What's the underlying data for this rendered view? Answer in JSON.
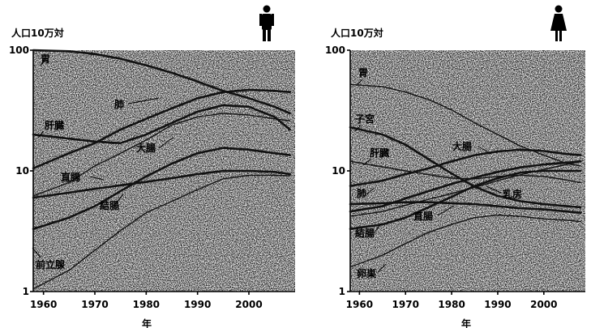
{
  "chart_data": [
    {
      "type": "line",
      "panel": "male",
      "icon": "male-person-icon",
      "y_unit_label": "人口10万対",
      "xlabel": "年",
      "yscale": "log",
      "ylim": [
        1,
        100
      ],
      "xlim": [
        1958,
        2009
      ],
      "x_ticks": [
        "1960",
        "1970",
        "1980",
        "1990",
        "2000"
      ],
      "y_ticks": [
        "1",
        "10",
        "100"
      ],
      "grid": true,
      "series": [
        {
          "name": "胃",
          "weight": "bold",
          "x": [
            1958,
            1965,
            1970,
            1975,
            1980,
            1985,
            1990,
            1995,
            2000,
            2005,
            2008
          ],
          "values": [
            100,
            98,
            93,
            85,
            75,
            65,
            55,
            46,
            40,
            34,
            30
          ]
        },
        {
          "name": "肺",
          "weight": "bold",
          "x": [
            1958,
            1965,
            1970,
            1975,
            1980,
            1985,
            1990,
            1995,
            2000,
            2005,
            2008
          ],
          "values": [
            10.5,
            14,
            17,
            22,
            27,
            33,
            40,
            45,
            47,
            46,
            45
          ]
        },
        {
          "name": "肝臓",
          "weight": "bold",
          "x": [
            1958,
            1965,
            1970,
            1975,
            1980,
            1985,
            1990,
            1995,
            2000,
            2005,
            2008
          ],
          "values": [
            20,
            18.5,
            17.5,
            17,
            20,
            25,
            31,
            35,
            34,
            28,
            22
          ]
        },
        {
          "name": "大腸",
          "weight": "normal",
          "x": [
            1958,
            1965,
            1970,
            1975,
            1980,
            1985,
            1990,
            1995,
            2000,
            2005,
            2008
          ],
          "values": [
            6.2,
            8,
            11,
            14,
            18,
            24,
            28,
            30,
            29,
            27,
            26
          ]
        },
        {
          "name": "直腸",
          "weight": "bold",
          "x": [
            1958,
            1965,
            1970,
            1975,
            1980,
            1985,
            1990,
            1995,
            2000,
            2005,
            2008
          ],
          "values": [
            6,
            6.6,
            7.1,
            7.6,
            8.1,
            8.7,
            9.4,
            10,
            10,
            9.8,
            9.4
          ]
        },
        {
          "name": "結腸",
          "weight": "bold",
          "x": [
            1958,
            1965,
            1970,
            1975,
            1980,
            1985,
            1990,
            1995,
            2000,
            2005,
            2008
          ],
          "values": [
            3.3,
            4.1,
            5.1,
            6.8,
            9,
            11.5,
            14,
            15.5,
            15,
            14,
            13.5
          ]
        },
        {
          "name": "前立腺",
          "weight": "normal",
          "x": [
            1958,
            1965,
            1970,
            1975,
            1980,
            1985,
            1990,
            1995,
            2000,
            2005,
            2008
          ],
          "values": [
            1.05,
            1.5,
            2.2,
            3.2,
            4.5,
            5.6,
            7,
            8.6,
            9.2,
            9.2,
            9.1
          ]
        }
      ]
    },
    {
      "type": "line",
      "panel": "female",
      "icon": "female-person-icon",
      "y_unit_label": "人口10万対",
      "xlabel": "年",
      "yscale": "log",
      "ylim": [
        1,
        100
      ],
      "xlim": [
        1958,
        2009
      ],
      "x_ticks": [
        "1960",
        "1970",
        "1980",
        "1990",
        "2000"
      ],
      "y_ticks": [
        "1",
        "10",
        "100"
      ],
      "grid": true,
      "series": [
        {
          "name": "胃",
          "weight": "normal",
          "x": [
            1958,
            1965,
            1970,
            1975,
            1980,
            1985,
            1990,
            1995,
            2000,
            2005,
            2008
          ],
          "values": [
            52,
            50,
            45,
            39,
            32,
            25,
            20,
            16,
            13.5,
            11.5,
            11
          ]
        },
        {
          "name": "子宮",
          "weight": "bold",
          "x": [
            1958,
            1965,
            1970,
            1975,
            1980,
            1985,
            1990,
            1995,
            2000,
            2005,
            2008
          ],
          "values": [
            23,
            20,
            16.5,
            12.5,
            9.5,
            7.4,
            6.2,
            5.6,
            5.3,
            5.1,
            5
          ]
        },
        {
          "name": "肝臓",
          "weight": "normal",
          "x": [
            1958,
            1965,
            1970,
            1975,
            1980,
            1985,
            1990,
            1995,
            2000,
            2005,
            2008
          ],
          "values": [
            12,
            10.8,
            10,
            9.3,
            8.7,
            8.6,
            9,
            9.2,
            9,
            8.4,
            8
          ]
        },
        {
          "name": "大腸",
          "weight": "bold",
          "x": [
            1958,
            1965,
            1970,
            1975,
            1980,
            1985,
            1990,
            1995,
            2000,
            2005,
            2008
          ],
          "values": [
            7.5,
            8.3,
            9.4,
            10.5,
            12,
            13.5,
            14.5,
            15,
            14.6,
            13.8,
            13.5
          ]
        },
        {
          "name": "肺",
          "weight": "bold",
          "x": [
            1958,
            1965,
            1970,
            1975,
            1980,
            1985,
            1990,
            1995,
            2000,
            2005,
            2008
          ],
          "values": [
            4.6,
            5.1,
            5.9,
            6.8,
            7.8,
            8.8,
            9.8,
            10.7,
            11.3,
            11.7,
            12
          ]
        },
        {
          "name": "乳房",
          "weight": "normal",
          "x": [
            1958,
            1965,
            1970,
            1975,
            1980,
            1985,
            1990,
            1995,
            2000,
            2005,
            2008
          ],
          "values": [
            4.2,
            4.6,
            5.2,
            5.8,
            6.5,
            7.3,
            8.3,
            9.3,
            10.3,
            11.3,
            12
          ]
        },
        {
          "name": "直腸",
          "weight": "bold",
          "x": [
            1958,
            1965,
            1970,
            1975,
            1980,
            1985,
            1990,
            1995,
            2000,
            2005,
            2008
          ],
          "values": [
            5.3,
            5.4,
            5.5,
            5.5,
            5.4,
            5.3,
            5.1,
            4.9,
            4.8,
            4.6,
            4.5
          ]
        },
        {
          "name": "結腸",
          "weight": "bold",
          "x": [
            1958,
            1965,
            1970,
            1975,
            1980,
            1985,
            1990,
            1995,
            2000,
            2005,
            2008
          ],
          "values": [
            3.3,
            3.6,
            4.1,
            5,
            6.1,
            7.5,
            8.7,
            9.7,
            10,
            10,
            10
          ]
        },
        {
          "name": "卵巣",
          "weight": "normal",
          "x": [
            1958,
            1965,
            1970,
            1975,
            1980,
            1985,
            1990,
            1995,
            2000,
            2005,
            2008
          ],
          "values": [
            1.6,
            2,
            2.5,
            3.1,
            3.6,
            4.1,
            4.3,
            4.2,
            4,
            3.9,
            3.8
          ]
        }
      ]
    }
  ]
}
